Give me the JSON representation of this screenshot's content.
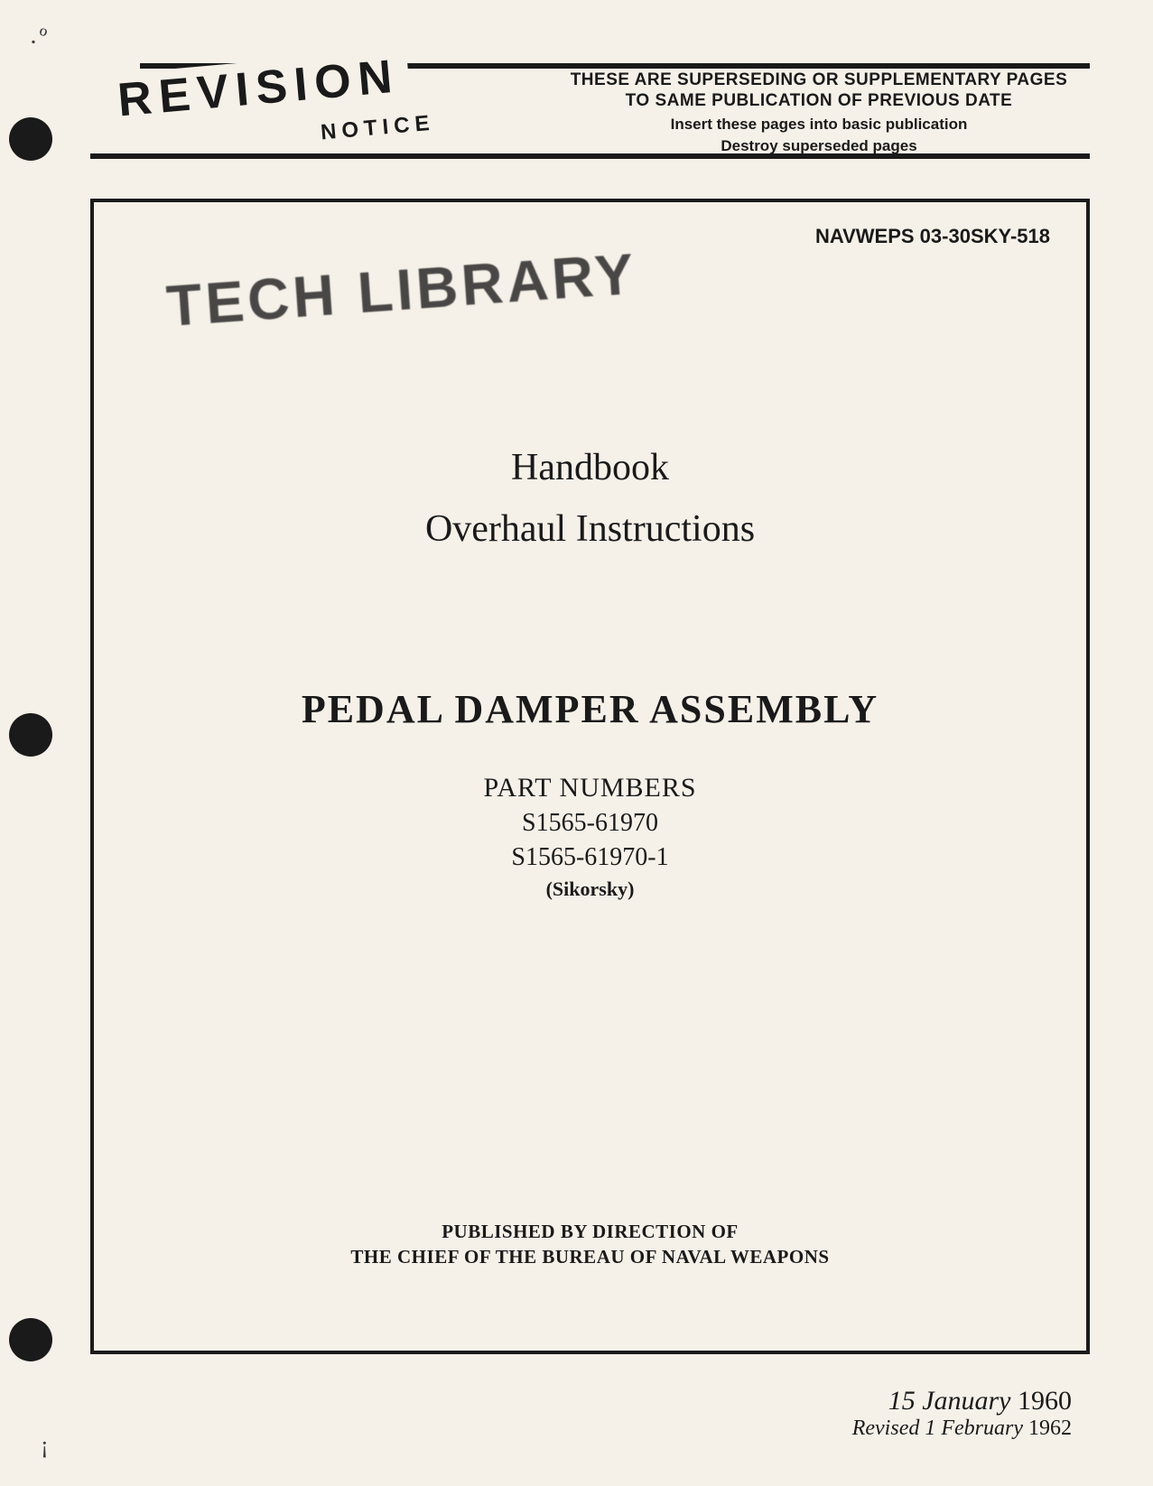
{
  "header": {
    "revision_label": "REVISION",
    "notice_label": "NOTICE",
    "supersede_title": "THESE ARE SUPERSEDING OR SUPPLEMENTARY PAGES TO SAME PUBLICATION OF PREVIOUS DATE",
    "supersede_instruction_1": "Insert these pages into basic publication",
    "supersede_instruction_2": "Destroy superseded pages"
  },
  "document": {
    "number_prefix": "NAVWEPS",
    "number": "03-30SKY-518",
    "stamp": "TECH LIBRARY",
    "handbook_label": "Handbook",
    "overhaul_label": "Overhaul Instructions",
    "assembly_title": "PEDAL DAMPER ASSEMBLY",
    "part_numbers_label": "PART NUMBERS",
    "part_numbers": [
      "S1565-61970",
      "S1565-61970-1"
    ],
    "manufacturer": "(Sikorsky)",
    "published_line_1": "PUBLISHED BY DIRECTION OF",
    "published_line_2": "THE CHIEF OF THE BUREAU OF NAVAL WEAPONS"
  },
  "dates": {
    "original": "15 January",
    "original_year": "1960",
    "revised_label": "Revised",
    "revised": "1 February",
    "revised_year": "1962"
  },
  "styling": {
    "page_bg": "#f5f1e8",
    "text_color": "#1a1a1a",
    "rule_thickness": 6,
    "box_border": 4,
    "revision_fontsize": 52,
    "notice_fontsize": 24,
    "stamp_fontsize": 64,
    "handbook_fontsize": 42,
    "assembly_fontsize": 44,
    "date_fontsize": 30
  }
}
